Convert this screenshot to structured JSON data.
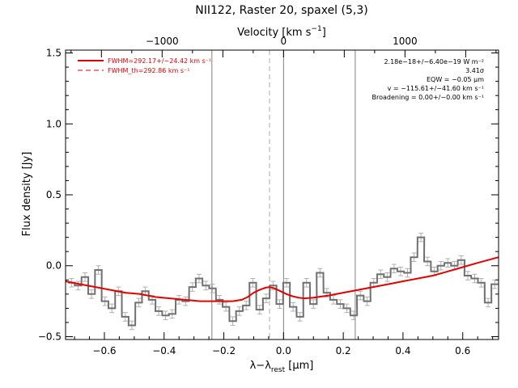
{
  "chart_data": {
    "type": "line",
    "title": "NII122, Raster 20, spaxel (5,3)",
    "xlabel": "λ-λ_rest [μm]",
    "xlabel_main": "λ−λ",
    "xlabel_sub": "rest",
    "xlabel_unit": " [μm]",
    "ylabel": "Flux density [Jy]",
    "top_axis_label": "Velocity [km s⁻¹]",
    "top_axis_label_main": "Velocity [km s",
    "top_axis_label_sup": "−1",
    "top_axis_label_end": "]",
    "xlim": [
      -0.73,
      0.72
    ],
    "ylim": [
      -0.52,
      1.52
    ],
    "x_ticks": [
      -0.6,
      -0.4,
      -0.2,
      0.0,
      0.2,
      0.4,
      0.6
    ],
    "x_tick_labels": [
      "−0.6",
      "−0.4",
      "−0.2",
      "0.0",
      "0.2",
      "0.4",
      "0.6"
    ],
    "y_ticks": [
      -0.5,
      0.0,
      0.5,
      1.0,
      1.5
    ],
    "y_tick_labels": [
      "−0.5",
      "0.0",
      "0.5",
      "1.0",
      "1.5"
    ],
    "top_ticks_velocity": [
      -1000,
      0,
      1000
    ],
    "top_tick_labels": [
      "−1000",
      "0",
      "1000"
    ],
    "rest_wavelength_um": 121.9,
    "vertical_lines_solid": [
      -0.24,
      0.0,
      0.24
    ],
    "vertical_line_dashed": -0.047,
    "legend": [
      {
        "label": "FWHM=292.17+/−24.42 km s⁻¹",
        "style": "solid"
      },
      {
        "label": "FWHM_th=292.86 km s⁻¹",
        "style": "dashed"
      }
    ],
    "annotations": [
      "2.18e−18+/−6.40e−19 W m⁻²",
      "3.41σ",
      "EQW = −0.05 μm",
      "v = −115.61+/−41.60 km s⁻¹",
      "Broadening = 0.00+/−0.00 km s⁻¹"
    ],
    "bin_width": 0.0225,
    "spectrum_x": [
      -0.71,
      -0.688,
      -0.665,
      -0.643,
      -0.62,
      -0.598,
      -0.575,
      -0.553,
      -0.53,
      -0.508,
      -0.485,
      -0.463,
      -0.44,
      -0.418,
      -0.395,
      -0.373,
      -0.35,
      -0.328,
      -0.305,
      -0.283,
      -0.26,
      -0.238,
      -0.215,
      -0.193,
      -0.17,
      -0.148,
      -0.125,
      -0.103,
      -0.08,
      -0.058,
      -0.035,
      -0.013,
      0.01,
      0.032,
      0.055,
      0.077,
      0.1,
      0.122,
      0.145,
      0.167,
      0.19,
      0.212,
      0.235,
      0.257,
      0.28,
      0.302,
      0.325,
      0.347,
      0.37,
      0.392,
      0.415,
      0.437,
      0.46,
      0.482,
      0.505,
      0.527,
      0.55,
      0.572,
      0.595,
      0.617,
      0.64,
      0.662,
      0.685,
      0.707
    ],
    "spectrum_flux": [
      -0.12,
      -0.14,
      -0.08,
      -0.2,
      -0.03,
      -0.25,
      -0.3,
      -0.18,
      -0.36,
      -0.42,
      -0.26,
      -0.18,
      -0.24,
      -0.32,
      -0.35,
      -0.34,
      -0.24,
      -0.25,
      -0.15,
      -0.09,
      -0.14,
      -0.16,
      -0.24,
      -0.29,
      -0.39,
      -0.32,
      -0.28,
      -0.12,
      -0.31,
      -0.23,
      -0.14,
      -0.27,
      -0.12,
      -0.29,
      -0.36,
      -0.12,
      -0.27,
      -0.05,
      -0.19,
      -0.24,
      -0.27,
      -0.3,
      -0.35,
      -0.21,
      -0.25,
      -0.12,
      -0.06,
      -0.08,
      -0.02,
      -0.04,
      -0.05,
      0.06,
      0.2,
      0.03,
      -0.04,
      0.0,
      0.02,
      0.0,
      0.04,
      -0.07,
      -0.09,
      -0.12,
      -0.26,
      -0.13
    ],
    "error": 0.03,
    "fit_x": [
      -0.73,
      -0.68,
      -0.63,
      -0.58,
      -0.53,
      -0.48,
      -0.43,
      -0.38,
      -0.33,
      -0.28,
      -0.23,
      -0.2,
      -0.17,
      -0.14,
      -0.12,
      -0.1,
      -0.08,
      -0.06,
      -0.047,
      -0.03,
      -0.01,
      0.01,
      0.03,
      0.05,
      0.07,
      0.1,
      0.15,
      0.2,
      0.25,
      0.3,
      0.35,
      0.4,
      0.45,
      0.5,
      0.55,
      0.6,
      0.65,
      0.72
    ],
    "fit_y": [
      -0.11,
      -0.13,
      -0.15,
      -0.17,
      -0.19,
      -0.2,
      -0.22,
      -0.23,
      -0.24,
      -0.25,
      -0.25,
      -0.25,
      -0.25,
      -0.24,
      -0.22,
      -0.19,
      -0.17,
      -0.155,
      -0.15,
      -0.16,
      -0.18,
      -0.2,
      -0.215,
      -0.225,
      -0.23,
      -0.225,
      -0.21,
      -0.19,
      -0.17,
      -0.15,
      -0.13,
      -0.11,
      -0.09,
      -0.07,
      -0.04,
      -0.01,
      0.02,
      0.06
    ]
  }
}
